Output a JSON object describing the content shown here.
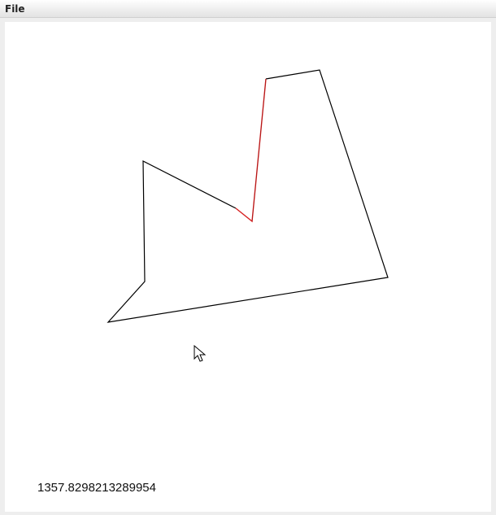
{
  "window": {
    "menu": {
      "file_label": "File"
    }
  },
  "canvas": {
    "measurement_text": "1357.8298213289954"
  },
  "icons": {
    "cursor": "mouse-pointer-icon"
  },
  "colors": {
    "outline": "#000000",
    "highlight": "#d61f1f",
    "background": "#ffffff",
    "menubar": "#ececec"
  }
}
